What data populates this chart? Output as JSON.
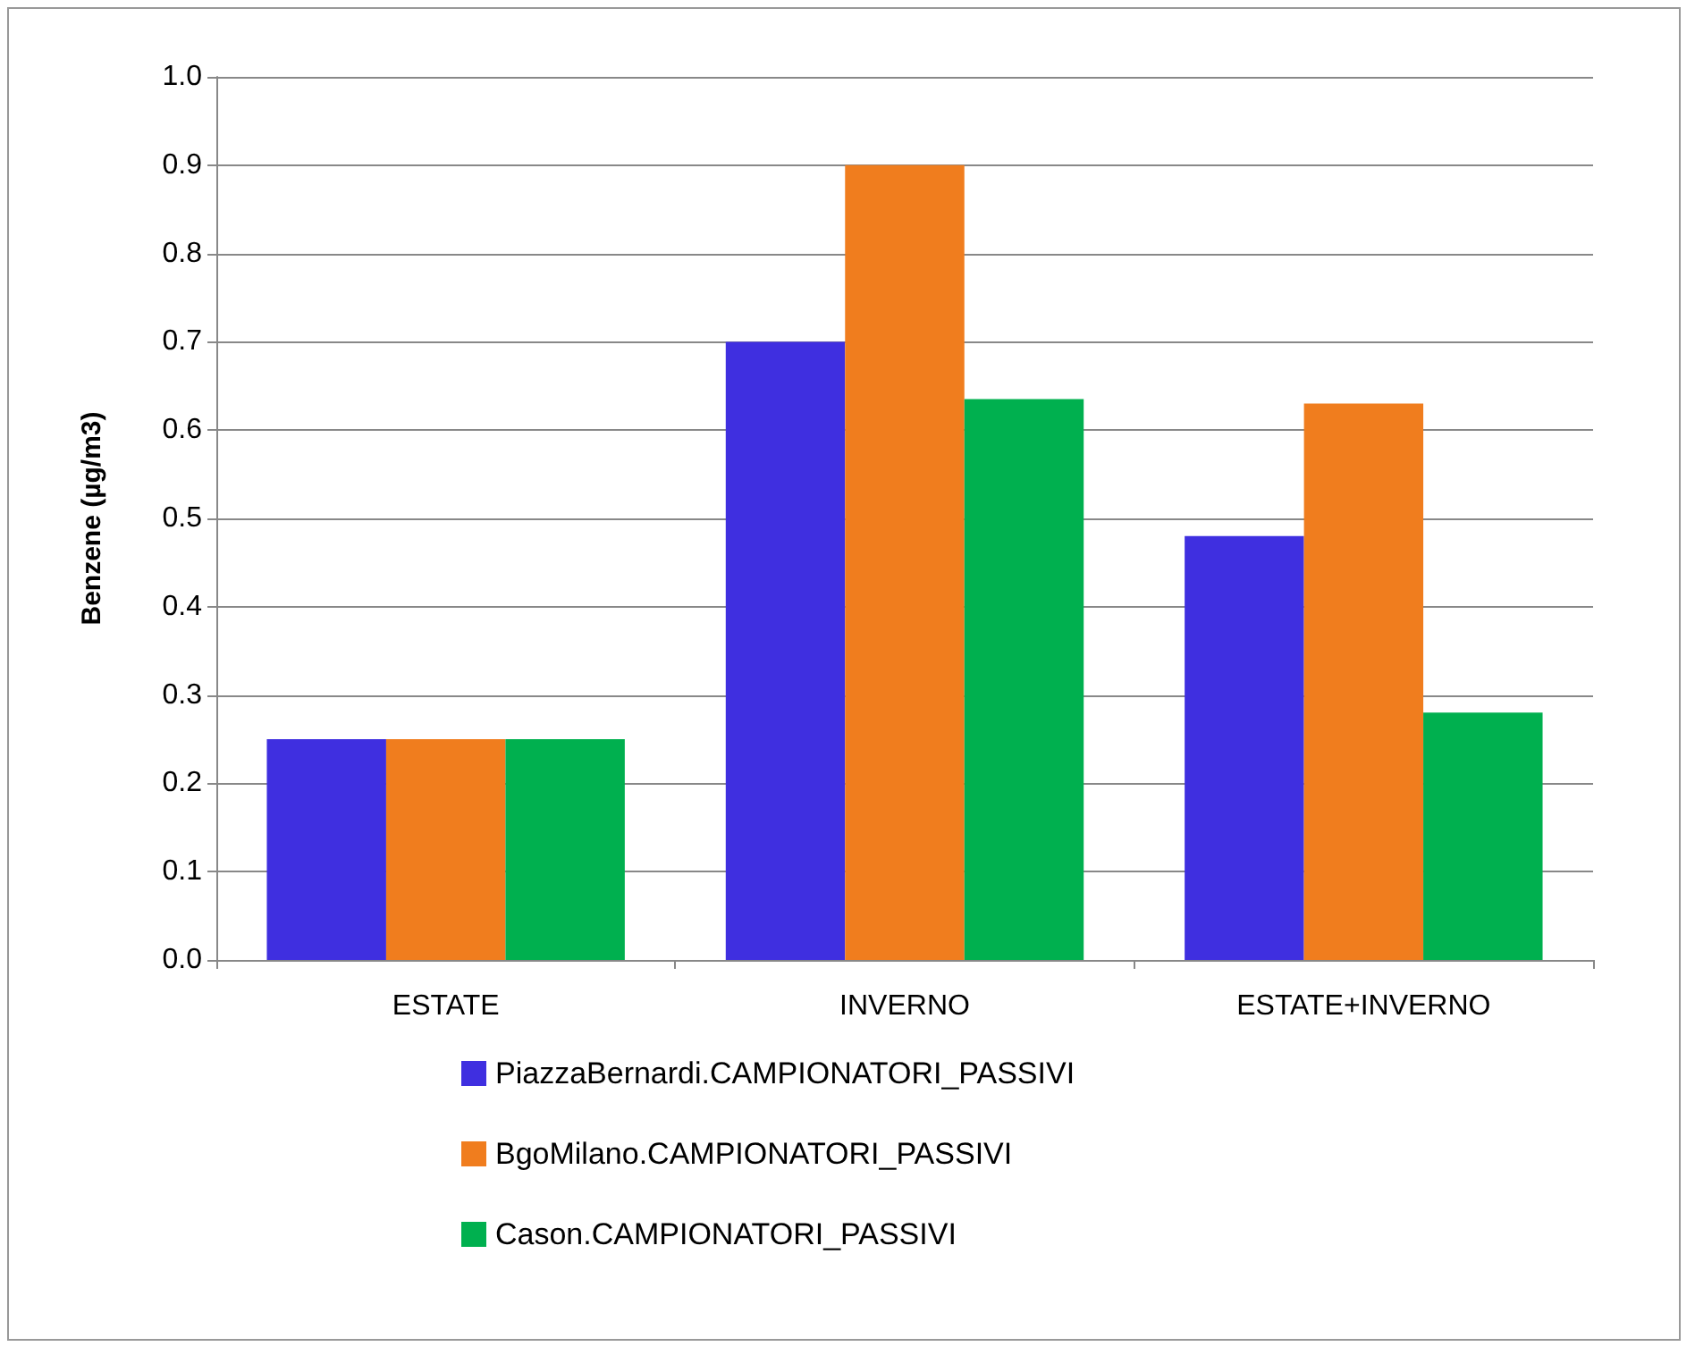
{
  "chart_data": {
    "type": "bar",
    "ylabel": "Benzene (µg/m3)",
    "categories": [
      "ESTATE",
      "INVERNO",
      "ESTATE+INVERNO"
    ],
    "series": [
      {
        "name": "PiazzaBernardi.CAMPIONATORI_PASSIVI",
        "color": "#3f2fe0",
        "values": [
          0.25,
          0.7,
          0.48
        ]
      },
      {
        "name": "BgoMilano.CAMPIONATORI_PASSIVI",
        "color": "#f07d1e",
        "values": [
          0.25,
          0.9,
          0.63
        ]
      },
      {
        "name": "Cason.CAMPIONATORI_PASSIVI",
        "color": "#00b04f",
        "values": [
          0.25,
          0.635,
          0.28
        ]
      }
    ],
    "ylim": [
      0,
      1
    ],
    "yticks": [
      {
        "value": 0,
        "label": "0.0"
      },
      0.1,
      0.2,
      0.3,
      0.4,
      0.5,
      0.6,
      0.7,
      0.8,
      0.9,
      {
        "value": 1,
        "label": "1.0"
      }
    ],
    "grid": "y",
    "legend": "bottom"
  }
}
